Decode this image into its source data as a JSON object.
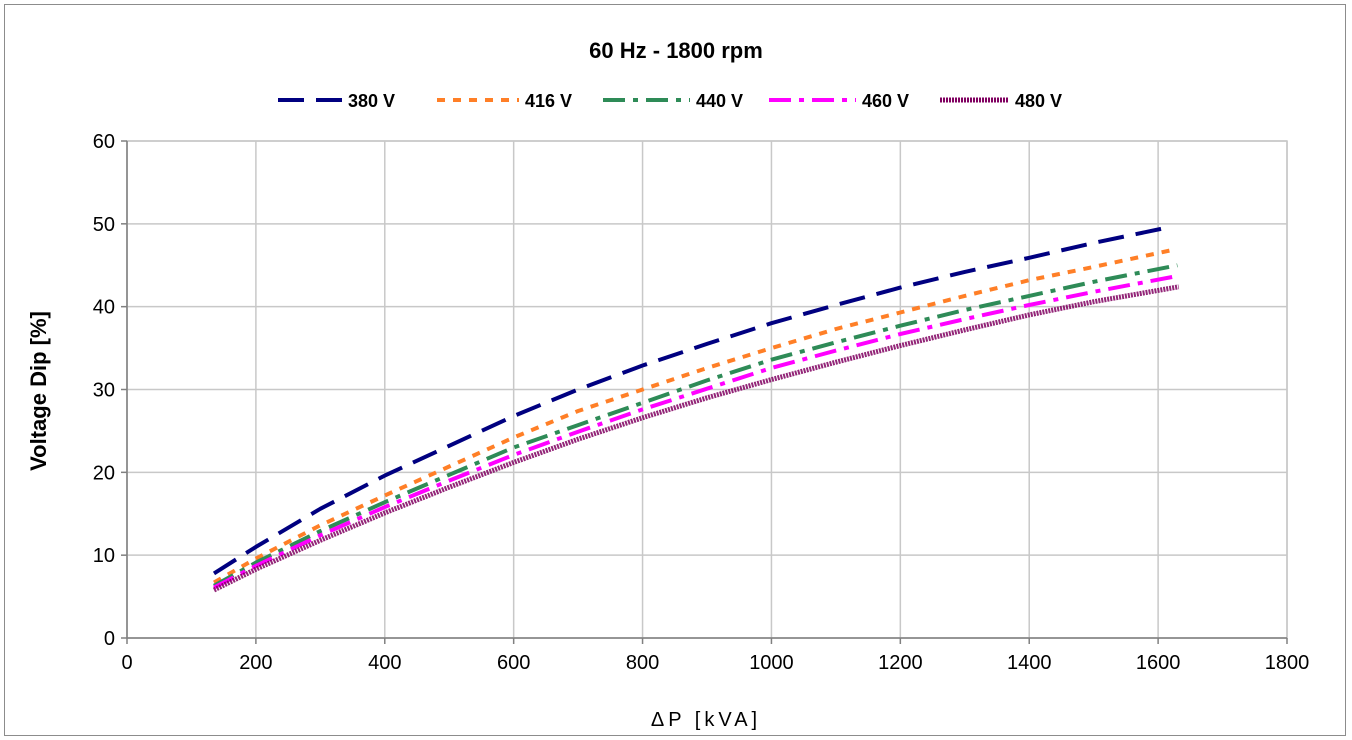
{
  "chart_data": {
    "type": "line",
    "title": "60 Hz - 1800 rpm",
    "xlabel": "ΔP  [kVA]",
    "ylabel": "Voltage Dip [%]",
    "xlim": [
      0,
      1800
    ],
    "ylim": [
      0,
      60
    ],
    "xticks": [
      0,
      200,
      400,
      600,
      800,
      1000,
      1200,
      1400,
      1600,
      1800
    ],
    "yticks": [
      0,
      10,
      20,
      30,
      40,
      50,
      60
    ],
    "grid": true,
    "legend_position": "top",
    "series": [
      {
        "name": "380 V",
        "color": "#000080",
        "dash": "long-dash",
        "x": [
          135,
          200,
          300,
          400,
          500,
          600,
          700,
          800,
          900,
          1000,
          1100,
          1200,
          1300,
          1400,
          1500,
          1605
        ],
        "y": [
          7.8,
          11.0,
          15.6,
          19.6,
          23.2,
          26.8,
          30.0,
          32.9,
          35.5,
          38.0,
          40.2,
          42.3,
          44.2,
          45.9,
          47.7,
          49.4
        ]
      },
      {
        "name": "416 V",
        "color": "#ff7f27",
        "dash": "short-dash",
        "x": [
          135,
          200,
          300,
          400,
          500,
          600,
          700,
          800,
          900,
          1000,
          1100,
          1200,
          1300,
          1400,
          1500,
          1620
        ],
        "y": [
          6.7,
          9.6,
          13.6,
          17.2,
          20.7,
          24.2,
          27.4,
          30.0,
          32.6,
          35.0,
          37.3,
          39.3,
          41.3,
          43.2,
          44.8,
          46.8
        ]
      },
      {
        "name": "440 V",
        "color": "#2e8b57",
        "dash": "dash-dot",
        "x": [
          135,
          200,
          300,
          400,
          500,
          600,
          700,
          800,
          900,
          1000,
          1100,
          1200,
          1300,
          1400,
          1500,
          1630
        ],
        "y": [
          6.3,
          9.1,
          12.9,
          16.4,
          19.7,
          23.0,
          25.7,
          28.4,
          31.1,
          33.6,
          35.7,
          37.7,
          39.6,
          41.3,
          43.0,
          45.0
        ]
      },
      {
        "name": "460 V",
        "color": "#ff00ff",
        "dash": "dash-dot",
        "x": [
          135,
          200,
          300,
          400,
          500,
          600,
          700,
          800,
          900,
          1000,
          1100,
          1200,
          1300,
          1400,
          1500,
          1630
        ],
        "y": [
          6.1,
          8.7,
          12.4,
          15.8,
          19.0,
          22.1,
          24.9,
          27.6,
          30.1,
          32.6,
          34.7,
          36.7,
          38.5,
          40.2,
          41.8,
          43.7
        ]
      },
      {
        "name": "480 V",
        "color": "#800060",
        "dash": "dense",
        "x": [
          135,
          200,
          300,
          400,
          500,
          600,
          700,
          800,
          900,
          1000,
          1100,
          1200,
          1300,
          1400,
          1500,
          1632
        ],
        "y": [
          5.8,
          8.3,
          11.8,
          15.1,
          18.2,
          21.2,
          24.0,
          26.6,
          29.0,
          31.2,
          33.3,
          35.3,
          37.2,
          39.0,
          40.6,
          42.4
        ]
      }
    ]
  }
}
